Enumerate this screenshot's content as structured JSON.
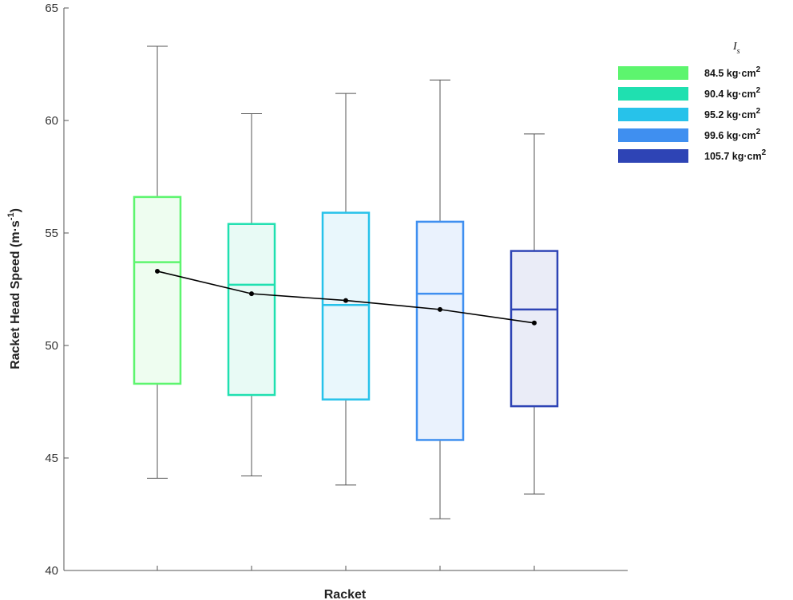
{
  "chart_data": {
    "type": "box",
    "title": "",
    "xlabel": "Racket",
    "ylabel": "Racket Head Speed (m·s",
    "ylabel_sup": "-1",
    "ylabel_tail": ")",
    "ylim": [
      40,
      65
    ],
    "yticks": [
      "40",
      "45",
      "50",
      "55",
      "60",
      "65"
    ],
    "legend": {
      "title": "I",
      "title_sub": "s",
      "placement": "top-right",
      "unit_sup": "2"
    },
    "series": [
      {
        "name": "84.5 kg·cm",
        "color": "#5df56e",
        "fill": "#eefdf0",
        "whisker_low": 44.1,
        "q1": 48.3,
        "median": 53.7,
        "q3": 56.6,
        "whisker_high": 63.3,
        "mean": 53.3
      },
      {
        "name": "90.4 kg·cm",
        "color": "#1fe0b0",
        "fill": "#e8faf5",
        "whisker_low": 44.2,
        "q1": 47.8,
        "median": 52.7,
        "q3": 55.4,
        "whisker_high": 60.3,
        "mean": 52.3
      },
      {
        "name": "95.2 kg·cm",
        "color": "#27c2ea",
        "fill": "#e9f7fc",
        "whisker_low": 43.8,
        "q1": 47.6,
        "median": 51.8,
        "q3": 55.9,
        "whisker_high": 61.2,
        "mean": 52.0
      },
      {
        "name": "99.6 kg·cm",
        "color": "#3f8ff0",
        "fill": "#eaf2fd",
        "whisker_low": 42.3,
        "q1": 45.8,
        "median": 52.3,
        "q3": 55.5,
        "whisker_high": 61.8,
        "mean": 51.6
      },
      {
        "name": "105.7 kg·cm",
        "color": "#2e44b5",
        "fill": "#eaecf7",
        "whisker_low": 43.4,
        "q1": 47.3,
        "median": 51.6,
        "q3": 54.2,
        "whisker_high": 59.4,
        "mean": 51.0
      }
    ],
    "mean_line": {
      "color": "#000000"
    },
    "grid": false
  }
}
